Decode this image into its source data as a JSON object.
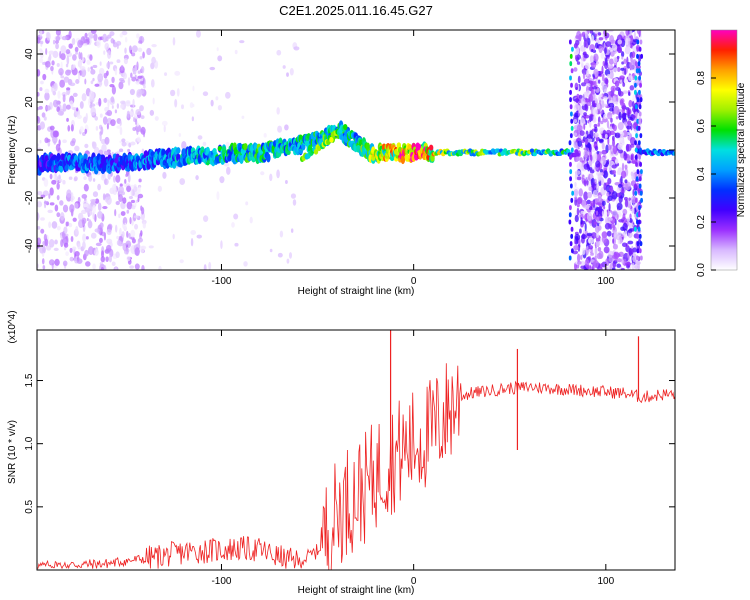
{
  "title": "C2E1.2025.011.16.45.G27",
  "colors": {
    "snr_line": "#ee2222",
    "axis": "#000000",
    "background": "#ffffff"
  },
  "chart_data": [
    {
      "type": "heatmap",
      "title": "C2E1.2025.011.16.45.G27",
      "xlabel": "Height of straight line (km)",
      "ylabel": "Frequency (Hz)",
      "xlim": [
        -196,
        136
      ],
      "ylim": [
        -50,
        50
      ],
      "x_ticks": [
        -100,
        0,
        100
      ],
      "y_ticks": [
        -40,
        -20,
        0,
        20,
        40
      ],
      "x_tick_labels": [
        "-100",
        "0",
        "100"
      ],
      "y_tick_labels": [
        "-40",
        "-20",
        "0",
        "20",
        "40"
      ],
      "colorbar": {
        "label": "Normalized spectral amplitude",
        "range": [
          0,
          1
        ],
        "ticks": [
          0.0,
          0.2,
          0.4,
          0.6,
          0.8
        ],
        "tick_labels": [
          "0.0",
          "0.2",
          "0.4",
          "0.6",
          "0.8"
        ],
        "colormap": [
          "#ffffff",
          "#d8b8ff",
          "#9b30ff",
          "#4000ff",
          "#0030ff",
          "#00a0ff",
          "#00e0e0",
          "#00e000",
          "#a0f000",
          "#ffff00",
          "#ffa000",
          "#ff2000",
          "#ff00c0"
        ]
      },
      "ridge": {
        "x": [
          -196,
          -180,
          -160,
          -140,
          -120,
          -100,
          -80,
          -60,
          -50,
          -45,
          -38,
          -30,
          -20,
          -10,
          0,
          20,
          40,
          60,
          80,
          82,
          90,
          100,
          110,
          118,
          122,
          130,
          136
        ],
        "frequency": [
          -6,
          -5,
          -6,
          -4,
          -3,
          -2,
          -1,
          2,
          4,
          6,
          8,
          3,
          -2,
          -1,
          -1,
          -1,
          -1,
          -1,
          -1,
          -2,
          0,
          0,
          0,
          -1,
          -1,
          -1,
          -1
        ],
        "amplitude": [
          0.3,
          0.4,
          0.35,
          0.4,
          0.45,
          0.5,
          0.55,
          0.5,
          0.55,
          0.6,
          0.55,
          0.5,
          0.7,
          0.8,
          0.95,
          0.6,
          0.6,
          0.6,
          0.5,
          0.3,
          0.2,
          0.2,
          0.2,
          0.3,
          0.4,
          0.4,
          0.4
        ]
      }
    },
    {
      "type": "line",
      "xlabel": "Height of straight line (km)",
      "ylabel": "SNR (10 * v/v)",
      "y_scale_note": "(x10^4)",
      "xlim": [
        -196,
        136
      ],
      "ylim": [
        0,
        1.9
      ],
      "x_ticks": [
        -100,
        0,
        100
      ],
      "y_ticks": [
        0.5,
        1.0,
        1.5
      ],
      "x_tick_labels": [
        "-100",
        "0",
        "100"
      ],
      "y_tick_labels": [
        "0.5",
        "1.0",
        "1.5"
      ],
      "series": [
        {
          "x": [
            -196,
            -180,
            -160,
            -140,
            -120,
            -100,
            -90,
            -80,
            -70,
            -60,
            -50,
            -45,
            -40,
            -35,
            -30,
            -25,
            -20,
            -15,
            -10,
            -5,
            0,
            5,
            10,
            15,
            20,
            25,
            30,
            40,
            50,
            53,
            55,
            60,
            70,
            80,
            90,
            100,
            110,
            115,
            118,
            120,
            125,
            130,
            136
          ],
          "y": [
            0.03,
            0.04,
            0.05,
            0.09,
            0.14,
            0.16,
            0.17,
            0.16,
            0.1,
            0.06,
            0.15,
            0.3,
            0.45,
            0.55,
            0.6,
            0.65,
            0.75,
            0.85,
            0.9,
            0.95,
            1.0,
            1.05,
            1.1,
            1.2,
            1.3,
            1.38,
            1.4,
            1.42,
            1.44,
            1.44,
            1.44,
            1.45,
            1.44,
            1.43,
            1.42,
            1.41,
            1.4,
            1.38,
            1.37,
            1.37,
            1.38,
            1.39,
            1.39
          ]
        }
      ],
      "annotations": [
        {
          "x": -12,
          "y": 1.9,
          "note": "spike"
        },
        {
          "x": 54,
          "y": 1.75,
          "note": "spike"
        },
        {
          "x": 54,
          "y": 0.95,
          "note": "dip"
        },
        {
          "x": 117,
          "y": 1.85,
          "note": "spike"
        }
      ]
    }
  ]
}
